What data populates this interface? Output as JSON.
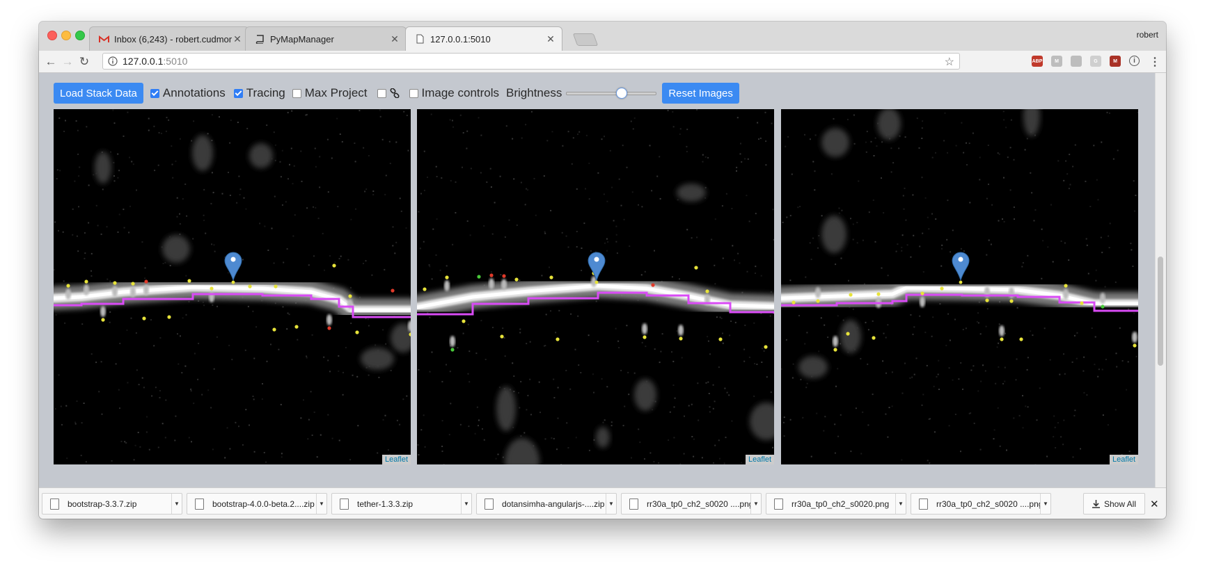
{
  "browser": {
    "tabs": [
      {
        "title": "Inbox (6,243) - robert.cudmore",
        "icon": "gmail-icon"
      },
      {
        "title": "PyMapManager",
        "icon": "book-icon"
      },
      {
        "title": "127.0.0.1:5010",
        "icon": "document-icon"
      }
    ],
    "active_tab": 2,
    "profile_name": "robert",
    "url_host": "127.0.0.1",
    "url_port": ":5010",
    "extensions": [
      {
        "name": "adblock-icon",
        "label": "ABP",
        "color": "#c0392b"
      },
      {
        "name": "mendeley-icon",
        "label": "M",
        "color": "#bdbdbd"
      },
      {
        "name": "page-icon",
        "label": "",
        "color": "#bdbdbd"
      },
      {
        "name": "google-icon",
        "label": "G",
        "color": "#cfcfcf"
      },
      {
        "name": "mapmanager-icon",
        "label": "M",
        "color": "#a93226"
      },
      {
        "name": "info-icon",
        "label": "i",
        "color": "#555555"
      }
    ]
  },
  "controls": {
    "load_button": "Load Stack Data",
    "annotations": {
      "label": "Annotations",
      "checked": true
    },
    "tracing": {
      "label": "Tracing",
      "checked": true
    },
    "max_project": {
      "label": "Max Project",
      "checked": false
    },
    "link": {
      "checked": false
    },
    "image_controls": {
      "label": "Image controls",
      "checked": false
    },
    "brightness_label": "Brightness",
    "brightness_value": 0.62,
    "reset_button": "Reset Images"
  },
  "panels": [
    {
      "attribution": "Leaflet"
    },
    {
      "attribution": "Leaflet"
    },
    {
      "attribution": "Leaflet"
    }
  ],
  "annotation_colors": {
    "spine": "#e7e33a",
    "red": "#e03a2a",
    "green": "#49c93a",
    "tracing": "#d94bf5",
    "marker": "#4e8ad1"
  },
  "downloads": {
    "items": [
      "bootstrap-3.3.7.zip",
      "bootstrap-4.0.0-beta.2....zip",
      "tether-1.3.3.zip",
      "dotansimha-angularjs-....zip",
      "rr30a_tp0_ch2_s0020 ....png",
      "rr30a_tp0_ch2_s0020.png",
      "rr30a_tp0_ch2_s0020 ....png"
    ],
    "show_all": "Show All"
  }
}
